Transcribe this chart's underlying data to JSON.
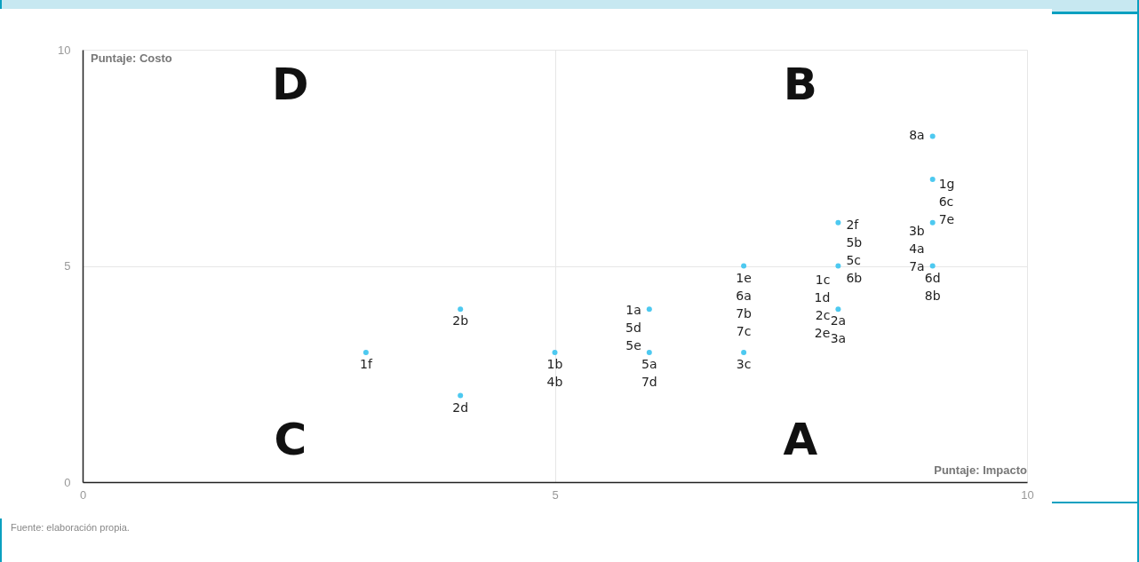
{
  "chart_data": {
    "type": "scatter",
    "xlabel": "Puntaje: Impacto",
    "ylabel": "Puntaje: Costo",
    "x": [
      3,
      4,
      4,
      5,
      6,
      6,
      7,
      7,
      8,
      8,
      8,
      9,
      9,
      9,
      9
    ],
    "series": [
      {
        "color": "#4dc9f0",
        "values": [
          3,
          4,
          2,
          3,
          4,
          3,
          5,
          3,
          6,
          5,
          4,
          8,
          7,
          6,
          5
        ]
      }
    ],
    "xlim": [
      0,
      10
    ],
    "ylim": [
      0,
      10
    ],
    "xticks": [
      0,
      5,
      10
    ],
    "yticks": [
      0,
      5,
      10
    ],
    "grid": true,
    "marker": "circle",
    "annotations": [
      {
        "text": "1f",
        "x": 3,
        "y": 3
      },
      {
        "text": "2b",
        "x": 4,
        "y": 4
      },
      {
        "text": "2d",
        "x": 4,
        "y": 2
      },
      {
        "text": "1b\n4b",
        "x": 5,
        "y": 3
      },
      {
        "text": "1a\n5d\n5e",
        "x": 6,
        "y": 4
      },
      {
        "text": "5a\n7d",
        "x": 6,
        "y": 3
      },
      {
        "text": "1e\n6a\n7b\n7c",
        "x": 7,
        "y": 5
      },
      {
        "text": "3c",
        "x": 7,
        "y": 3
      },
      {
        "text": "2f\n5b\n5c\n6b",
        "x": 8,
        "y": 6
      },
      {
        "text": "1c\n1d\n2c\n2e",
        "x": 8,
        "y": 5
      },
      {
        "text": "2a\n3a",
        "x": 8,
        "y": 4
      },
      {
        "text": "8a",
        "x": 9,
        "y": 8
      },
      {
        "text": "1g\n6c\n7e",
        "x": 9,
        "y": 7
      },
      {
        "text": "3b\n4a\n7a",
        "x": 9,
        "y": 6
      },
      {
        "text": "6d\n8b",
        "x": 9,
        "y": 5
      },
      "D",
      "B",
      "C",
      "A",
      "Fuente: elaboración propia."
    ]
  }
}
